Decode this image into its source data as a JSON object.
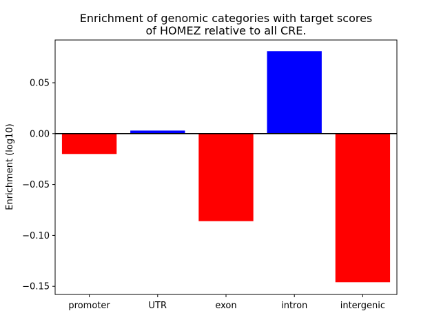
{
  "chart_data": {
    "type": "bar",
    "title_lines": [
      "Enrichment of genomic categories with target scores",
      "of HOMEZ relative to all CRE."
    ],
    "xlabel": "",
    "ylabel": "Enrichment (log10)",
    "categories": [
      "promoter",
      "UTR",
      "exon",
      "intron",
      "intergenic"
    ],
    "values": [
      -0.02,
      0.003,
      -0.086,
      0.081,
      -0.146
    ],
    "ylim": [
      -0.158,
      0.092
    ],
    "yticks": [
      0.05,
      0.0,
      -0.05,
      -0.1,
      -0.15
    ],
    "ytick_labels": [
      "0.05",
      "0.00",
      "−0.05",
      "−0.10",
      "−0.15"
    ],
    "colors": {
      "positive": "#0000ff",
      "negative": "#ff0000",
      "zero_line": "#000000"
    },
    "grid": false
  }
}
